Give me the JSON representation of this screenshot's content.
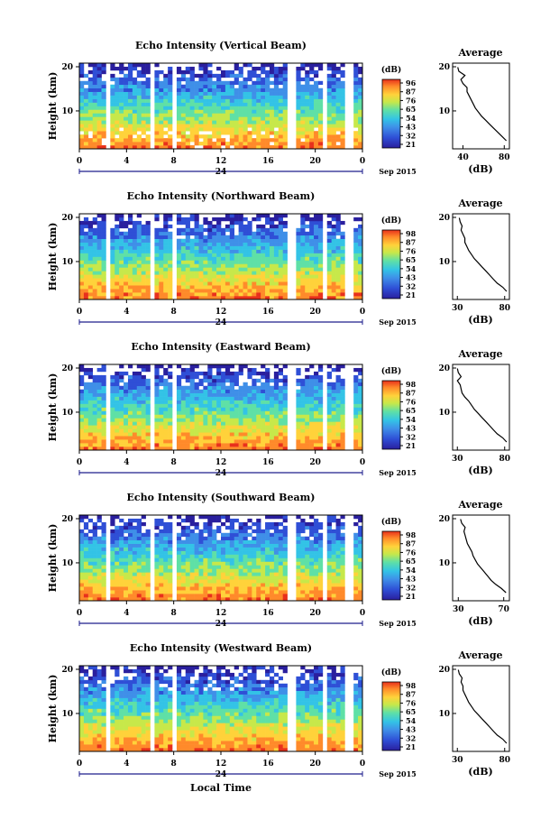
{
  "chart_data": [
    {
      "type": "heatmap",
      "title": "Echo Intensity (Vertical Beam)",
      "ylabel": "Height (km)",
      "y_ticks": [
        "20",
        "10"
      ],
      "x_ticks": [
        "0",
        "4",
        "8",
        "12",
        "16",
        "20",
        "0"
      ],
      "date_label": "24",
      "date_suffix": "Sep 2015",
      "colorbar": {
        "unit": "(dB)",
        "ticks": [
          "96",
          "87",
          "76",
          "65",
          "54",
          "43",
          "32",
          "21"
        ]
      },
      "average": {
        "title": "Average",
        "xlabel": "(dB)",
        "x_ticks": [
          "40",
          "80"
        ],
        "xlim": [
          30,
          85
        ],
        "y_ticks": [
          "20",
          "10"
        ],
        "heights": [
          2,
          3,
          4,
          5,
          6,
          7,
          8,
          9,
          10,
          11,
          12,
          13,
          14,
          15,
          16,
          17,
          18,
          19,
          20
        ],
        "values": [
          82,
          78,
          74,
          70,
          66,
          62,
          58,
          55,
          52,
          50,
          48,
          46,
          44,
          44,
          40,
          38,
          42,
          36,
          35
        ]
      }
    },
    {
      "type": "heatmap",
      "title": "Echo Intensity (Northward Beam)",
      "ylabel": "Height (km)",
      "y_ticks": [
        "20",
        "10"
      ],
      "x_ticks": [
        "0",
        "4",
        "8",
        "12",
        "16",
        "20",
        "0"
      ],
      "date_label": "24",
      "date_suffix": "Sep 2015",
      "colorbar": {
        "unit": "(dB)",
        "ticks": [
          "98",
          "87",
          "76",
          "65",
          "54",
          "43",
          "32",
          "21"
        ]
      },
      "average": {
        "title": "Average",
        "xlabel": "(dB)",
        "x_ticks": [
          "30",
          "80"
        ],
        "xlim": [
          25,
          85
        ],
        "y_ticks": [
          "20",
          "10"
        ],
        "heights": [
          2,
          3,
          4,
          5,
          6,
          7,
          8,
          9,
          10,
          11,
          12,
          13,
          14,
          15,
          16,
          17,
          18,
          19,
          20
        ],
        "values": [
          82,
          78,
          72,
          68,
          64,
          60,
          56,
          52,
          48,
          45,
          42,
          40,
          38,
          38,
          36,
          34,
          35,
          33,
          32
        ]
      }
    },
    {
      "type": "heatmap",
      "title": "Echo Intensity (Eastward Beam)",
      "ylabel": "Height (km)",
      "y_ticks": [
        "20",
        "10"
      ],
      "x_ticks": [
        "0",
        "4",
        "8",
        "12",
        "16",
        "20",
        "0"
      ],
      "date_label": "24",
      "date_suffix": "Sep 2015",
      "colorbar": {
        "unit": "(dB)",
        "ticks": [
          "98",
          "87",
          "76",
          "65",
          "54",
          "43",
          "32",
          "21"
        ]
      },
      "average": {
        "title": "Average",
        "xlabel": "(dB)",
        "x_ticks": [
          "30",
          "80"
        ],
        "xlim": [
          25,
          85
        ],
        "y_ticks": [
          "20",
          "10"
        ],
        "heights": [
          2,
          3,
          4,
          5,
          6,
          7,
          8,
          9,
          10,
          11,
          12,
          13,
          14,
          15,
          16,
          17,
          18,
          19,
          20
        ],
        "values": [
          82,
          78,
          72,
          68,
          64,
          60,
          56,
          52,
          48,
          45,
          42,
          38,
          35,
          34,
          33,
          30,
          34,
          31,
          30
        ]
      }
    },
    {
      "type": "heatmap",
      "title": "Echo Intensity (Southward Beam)",
      "ylabel": "Height (km)",
      "y_ticks": [
        "20",
        "10"
      ],
      "x_ticks": [
        "0",
        "4",
        "8",
        "12",
        "16",
        "20",
        "0"
      ],
      "date_label": "24",
      "date_suffix": "Sep 2015",
      "colorbar": {
        "unit": "(dB)",
        "ticks": [
          "98",
          "87",
          "76",
          "65",
          "54",
          "43",
          "32",
          "21"
        ]
      },
      "average": {
        "title": "Average",
        "xlabel": "(dB)",
        "x_ticks": [
          "30",
          "70"
        ],
        "xlim": [
          25,
          75
        ],
        "y_ticks": [
          "20",
          "10"
        ],
        "heights": [
          2,
          3,
          4,
          5,
          6,
          7,
          8,
          9,
          10,
          11,
          12,
          13,
          14,
          15,
          16,
          17,
          18,
          19,
          20
        ],
        "values": [
          72,
          68,
          63,
          59,
          56,
          53,
          50,
          47,
          45,
          43,
          42,
          40,
          38,
          37,
          36,
          35,
          36,
          33,
          32
        ]
      }
    },
    {
      "type": "heatmap",
      "title": "Echo Intensity (Westward Beam)",
      "ylabel": "Height (km)",
      "y_ticks": [
        "20",
        "10"
      ],
      "x_ticks": [
        "0",
        "4",
        "8",
        "12",
        "16",
        "20",
        "0"
      ],
      "date_label": "24",
      "date_suffix": "Sep 2015",
      "xlabel": "Local Time",
      "colorbar": {
        "unit": "(dB)",
        "ticks": [
          "98",
          "87",
          "76",
          "65",
          "54",
          "43",
          "32",
          "21"
        ]
      },
      "average": {
        "title": "Average",
        "xlabel": "(dB)",
        "x_ticks": [
          "30",
          "80"
        ],
        "xlim": [
          25,
          85
        ],
        "y_ticks": [
          "20",
          "10"
        ],
        "heights": [
          2,
          3,
          4,
          5,
          6,
          7,
          8,
          9,
          10,
          11,
          12,
          13,
          14,
          15,
          16,
          17,
          18,
          19,
          20
        ],
        "values": [
          82,
          78,
          72,
          68,
          64,
          60,
          56,
          52,
          48,
          45,
          42,
          40,
          38,
          36,
          36,
          34,
          35,
          32,
          31
        ]
      }
    }
  ],
  "colormap": [
    "#2a1f9e",
    "#2f4fd6",
    "#3f8fe8",
    "#33c3e6",
    "#5fe0a6",
    "#c7e84a",
    "#ffd23a",
    "#ff8a2a",
    "#e8301c"
  ]
}
